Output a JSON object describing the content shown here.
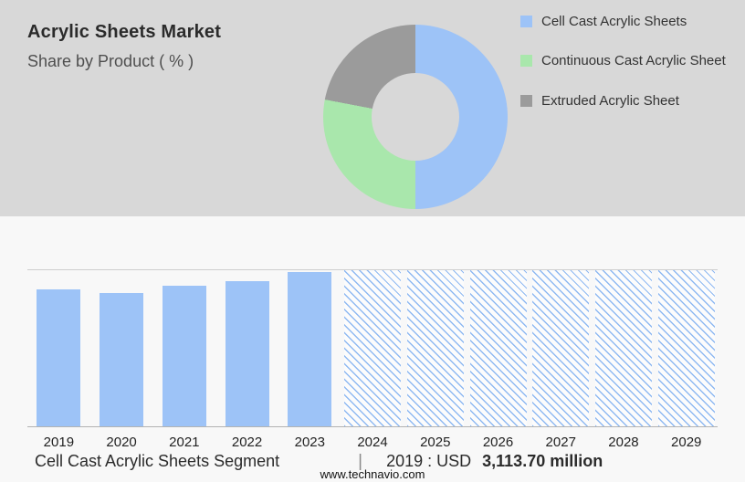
{
  "header": {
    "title": "Acrylic Sheets Market",
    "subtitle": "Share by Product ( % )"
  },
  "caption": {
    "segment": "Cell Cast Acrylic Sheets Segment",
    "divider": "|",
    "year_label": "2019 : USD",
    "value": "3,113.70 million"
  },
  "footer": {
    "url": "www.technavio.com"
  },
  "colors": {
    "header_background": "#d8d8d8",
    "body_background": "#f8f8f8",
    "cell_cast_blue": "#9DC3F7",
    "continuous_cast_green": "#A9E7AC",
    "extruded_gray": "#9B9B9B"
  },
  "chart_data": [
    {
      "type": "pie",
      "donut": true,
      "title": "Share by Product ( % )",
      "legend_position": "right",
      "segments": [
        {
          "label": "Cell Cast Acrylic Sheets",
          "value": 50,
          "color": "#9DC3F7"
        },
        {
          "label": "Continuous Cast Acrylic Sheet",
          "value": 28,
          "color": "#A9E7AC"
        },
        {
          "label": "Extruded Acrylic Sheet",
          "value": 22,
          "color": "#9B9B9B"
        }
      ],
      "note": "Percentages are not labeled on the chart; values estimated from arc angles."
    },
    {
      "type": "bar",
      "categories": [
        "2019",
        "2020",
        "2021",
        "2022",
        "2023",
        "2024",
        "2025",
        "2026",
        "2027",
        "2028",
        "2029"
      ],
      "values": [
        3113.7,
        3030,
        3210,
        3320,
        3520,
        null,
        null,
        null,
        null,
        null,
        null
      ],
      "ylim": [
        0,
        3560
      ],
      "ylabel": "USD million",
      "labeled_value": "2019 : USD 3,113.70 million",
      "forecast_years_hatched": [
        "2024",
        "2025",
        "2026",
        "2027",
        "2028",
        "2029"
      ],
      "grid": "top line and baseline only",
      "note": "Only the 2019 value is labeled; 2020-2023 estimated from bar heights; 2024-2029 drawn as full-height hatched forecast bars."
    }
  ]
}
